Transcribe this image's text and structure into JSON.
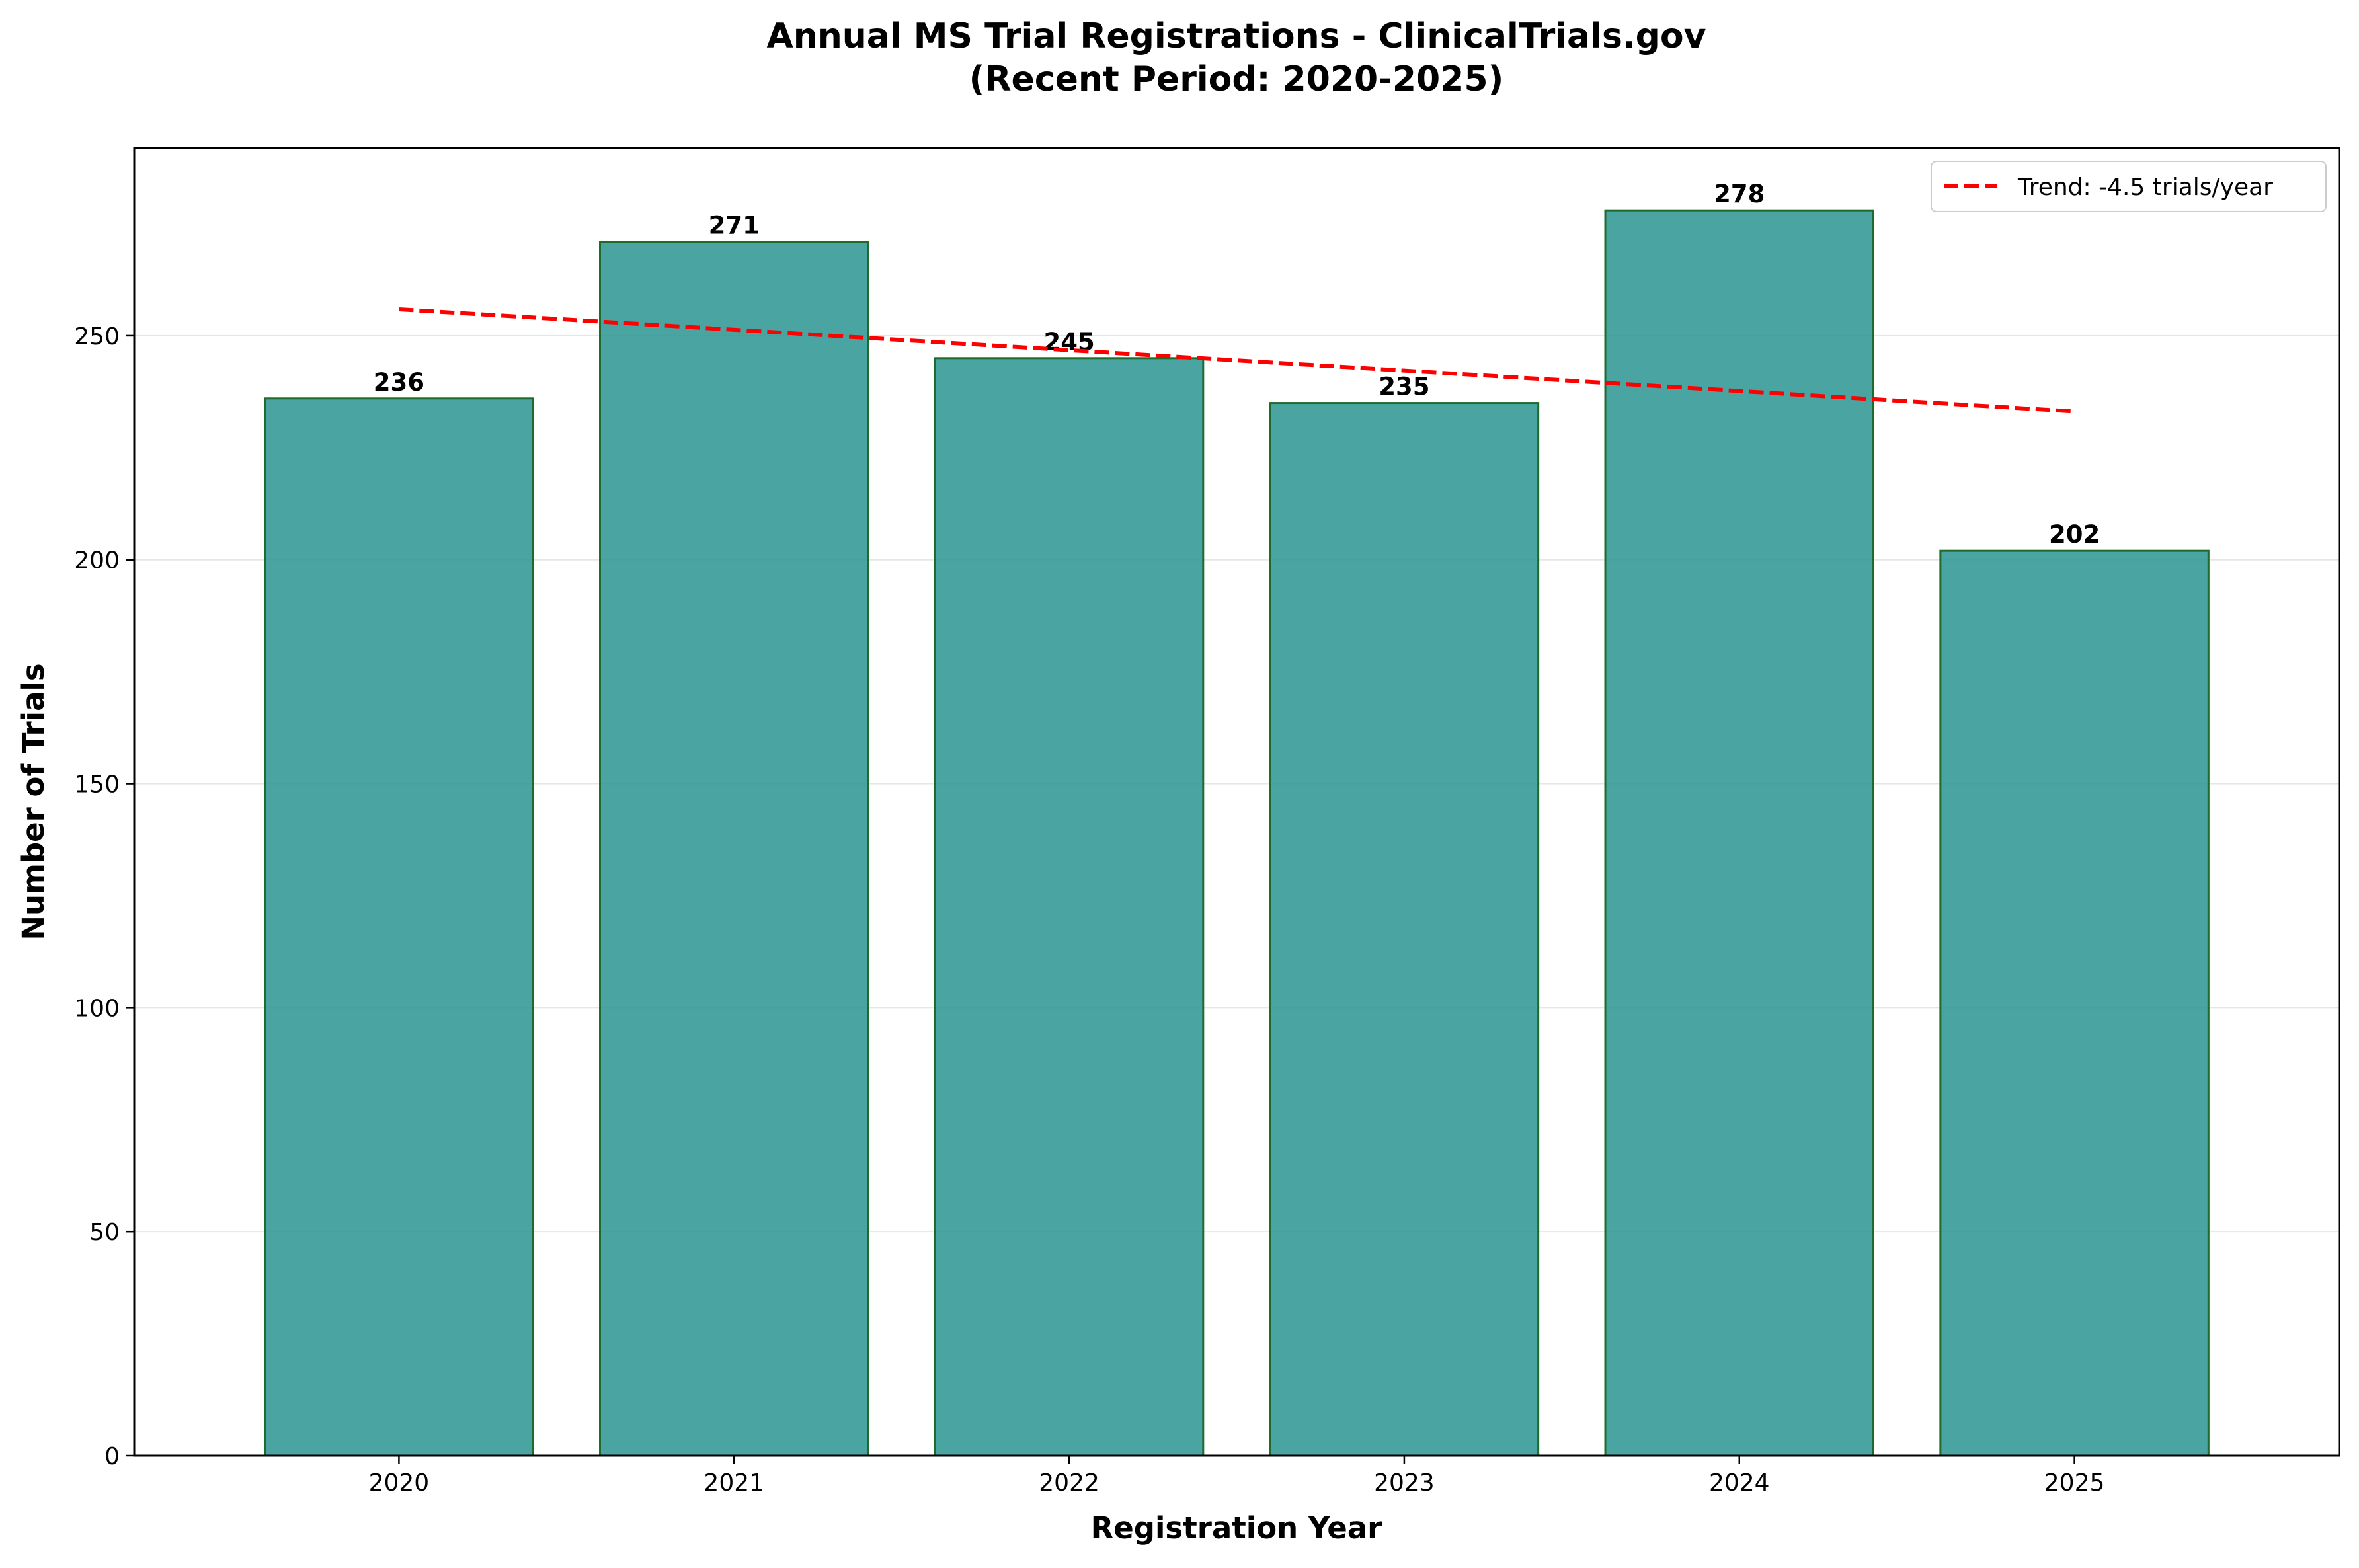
{
  "chart_data": {
    "type": "bar",
    "title_lines": [
      "Annual MS Trial Registrations - ClinicalTrials.gov",
      "(Recent Period: 2020-2025)"
    ],
    "xlabel": "Registration Year",
    "ylabel": "Number of Trials",
    "categories": [
      "2020",
      "2021",
      "2022",
      "2023",
      "2024",
      "2025"
    ],
    "values": [
      236,
      271,
      245,
      235,
      278,
      202
    ],
    "value_labels": [
      "236",
      "271",
      "245",
      "235",
      "278",
      "202"
    ],
    "ylim": [
      0,
      291.9
    ],
    "yticks": [
      0,
      50,
      100,
      150,
      200,
      250
    ],
    "ytick_labels": [
      "0",
      "50",
      "100",
      "150",
      "200",
      "250"
    ],
    "grid": "y",
    "bar_color": "#2a9490",
    "bar_edge_color": "#1e6b2e",
    "trend": {
      "label": "Trend: -4.5 trials/year",
      "start": 255.9,
      "end": 233.1,
      "color": "#ff0000",
      "style": "dashed"
    },
    "legend_position": "upper right"
  }
}
